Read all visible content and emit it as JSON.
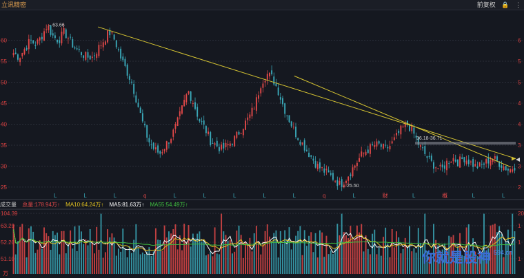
{
  "header": {
    "title": "立讯精密",
    "adjust_label": "前复权",
    "lock_icon": "lock-icon",
    "menu_icon": "more-icon"
  },
  "volume_legend": {
    "label": "成交量",
    "total": "总量:178.94万↑",
    "ma10": "MA10:64.24万↑",
    "ma5": "MA5:81.63万↑",
    "ma55": "MA55:54.49万↑",
    "unit": "万"
  },
  "watermark": {
    "text": "你就是股神",
    "site": "594.cn"
  },
  "colors": {
    "up": "#e04848",
    "down": "#3aa8b8",
    "trend": "#d6c432",
    "ma5": "#ffffff",
    "ma10": "#e0c020",
    "ma55": "#40c040",
    "bg": "#151820"
  },
  "chart_data": [
    {
      "type": "candlestick",
      "title": "",
      "yticks_left": [
        "60",
        "55",
        "50",
        "45",
        "40",
        "35",
        "30",
        "25"
      ],
      "yticks_right": [
        "6",
        "5",
        "5",
        "4",
        "4",
        "3",
        "3",
        "2"
      ],
      "ylim": [
        24,
        66
      ],
      "annotations": [
        {
          "text": "63.66",
          "kind": "high"
        },
        {
          "text": "25.50",
          "kind": "low"
        },
        {
          "text": "36.18-36.71",
          "kind": "range"
        }
      ],
      "event_markers": [
        {
          "label": "L",
          "color": "#3aa8b8"
        },
        {
          "label": "L",
          "color": "#3aa8b8"
        },
        {
          "label": "L",
          "color": "#3aa8b8"
        },
        {
          "label": "q",
          "color": "#e04848"
        },
        {
          "label": "L",
          "color": "#3aa8b8"
        },
        {
          "label": "L",
          "color": "#3aa8b8"
        },
        {
          "label": "L",
          "color": "#3aa8b8"
        },
        {
          "label": "L",
          "color": "#3aa8b8"
        },
        {
          "label": "L",
          "color": "#3aa8b8"
        },
        {
          "label": "q",
          "color": "#e04848"
        },
        {
          "label": "L",
          "color": "#3aa8b8"
        },
        {
          "label": "财",
          "color": "#e04848"
        },
        {
          "label": "L",
          "color": "#3aa8b8"
        },
        {
          "label": "概",
          "color": "#e04848"
        },
        {
          "label": "L",
          "color": "#3aa8b8"
        },
        {
          "label": "L",
          "color": "#3aa8b8"
        }
      ],
      "price_path": [
        57,
        56,
        58,
        60,
        59,
        61,
        63.66,
        61,
        60,
        62,
        60,
        58,
        57,
        56,
        56,
        58,
        60,
        62,
        60,
        56,
        53,
        50,
        45,
        40,
        36,
        34,
        33,
        35,
        37,
        40,
        44,
        48,
        45,
        41,
        39,
        36,
        35,
        34,
        35,
        36,
        38,
        40,
        42,
        45,
        50,
        52,
        51,
        48,
        44,
        41,
        38,
        36,
        34,
        32,
        30,
        29,
        28,
        27,
        25.5,
        27,
        29,
        31,
        33,
        34,
        35,
        35,
        34,
        35,
        37,
        39,
        40,
        38,
        35,
        33,
        31,
        30,
        29,
        31,
        32,
        31,
        32,
        31,
        30,
        30,
        31,
        32,
        31,
        30,
        29,
        30
      ]
    },
    {
      "type": "bar",
      "title": "",
      "yticks_left": [
        "104.39",
        "63.29",
        "52.20",
        "51.10"
      ],
      "yticks_right": [
        "20",
        "1",
        "1",
        "1"
      ],
      "series": [
        {
          "name": "MA5"
        },
        {
          "name": "MA10"
        },
        {
          "name": "MA55"
        }
      ]
    }
  ]
}
